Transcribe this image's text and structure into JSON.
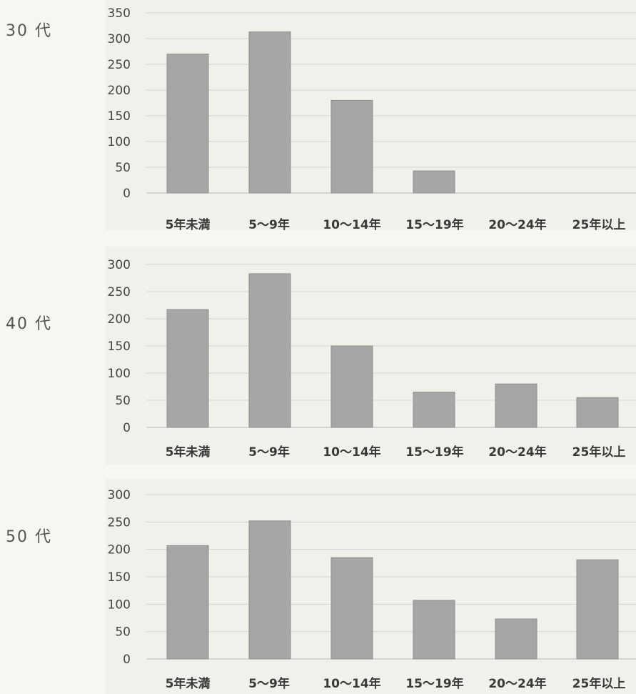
{
  "chart_data": [
    {
      "type": "bar",
      "title": "30 代",
      "categories": [
        "5年未満",
        "5〜9年",
        "10〜14年",
        "15〜19年",
        "20〜24年",
        "25年以上"
      ],
      "values": [
        270,
        313,
        180,
        43,
        0,
        0
      ],
      "ylim": [
        0,
        350
      ],
      "yticks": [
        0,
        50,
        100,
        150,
        200,
        250,
        300,
        350
      ],
      "grid": true,
      "bar_color": "#a6a6a6"
    },
    {
      "type": "bar",
      "title": "40 代",
      "categories": [
        "5年未満",
        "5〜9年",
        "10〜14年",
        "15〜19年",
        "20〜24年",
        "25年以上"
      ],
      "values": [
        217,
        283,
        150,
        65,
        80,
        55
      ],
      "ylim": [
        0,
        300
      ],
      "yticks": [
        0,
        50,
        100,
        150,
        200,
        250,
        300
      ],
      "grid": true,
      "bar_color": "#a6a6a6"
    },
    {
      "type": "bar",
      "title": "50 代",
      "categories": [
        "5年未満",
        "5〜9年",
        "10〜14年",
        "15〜19年",
        "20〜24年",
        "25年以上"
      ],
      "values": [
        207,
        252,
        185,
        107,
        73,
        181
      ],
      "ylim": [
        0,
        300
      ],
      "yticks": [
        0,
        50,
        100,
        150,
        200,
        250,
        300
      ],
      "grid": true,
      "bar_color": "#a6a6a6"
    }
  ]
}
